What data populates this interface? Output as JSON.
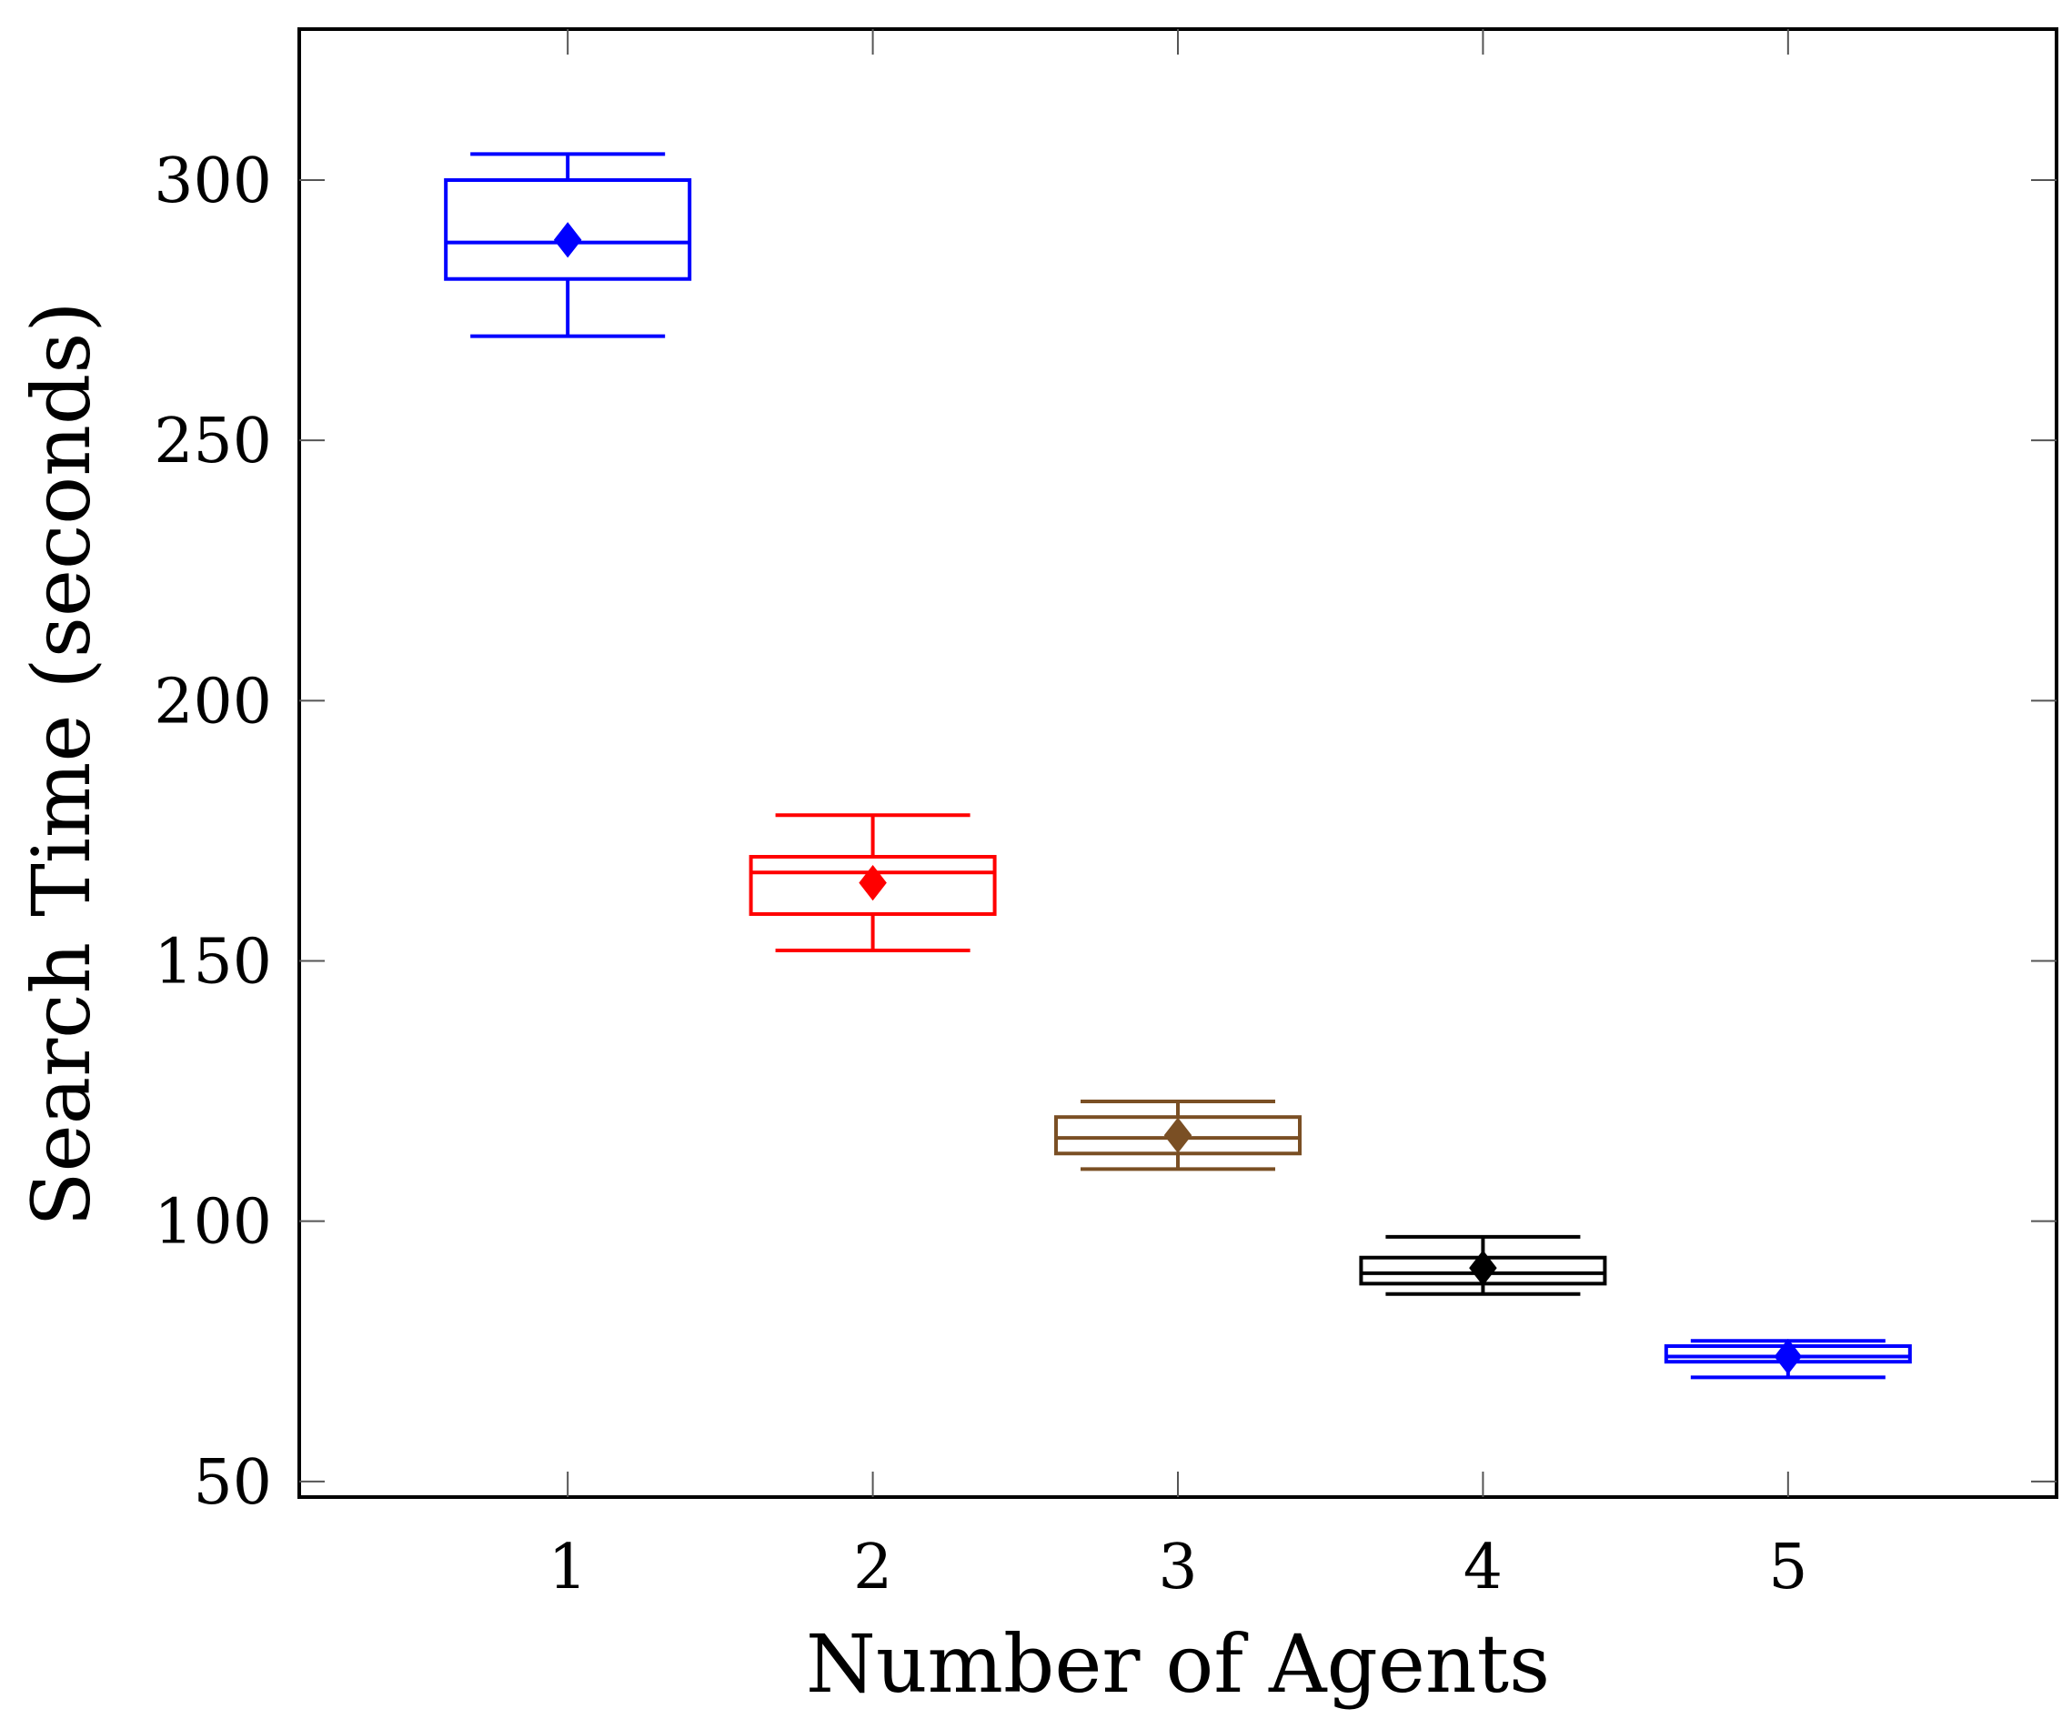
{
  "chart_data": {
    "type": "boxplot",
    "xlabel": "Number of Agents",
    "ylabel": "Search Time (seconds)",
    "xlim": [
      0.12,
      5.88
    ],
    "ylim": [
      47,
      329
    ],
    "x_ticks": [
      1,
      2,
      3,
      4,
      5
    ],
    "y_ticks": [
      50,
      100,
      150,
      200,
      250,
      300
    ],
    "grid": false,
    "legend": "none",
    "boxes": [
      {
        "x": 1,
        "whisker_low": 270,
        "q1": 281,
        "median": 288,
        "q3": 300,
        "whisker_high": 305,
        "mean": 288.5,
        "color": "#0000ff"
      },
      {
        "x": 2,
        "whisker_low": 152,
        "q1": 159,
        "median": 167,
        "q3": 170,
        "whisker_high": 178,
        "mean": 165,
        "color": "#ff0000"
      },
      {
        "x": 3,
        "whisker_low": 110,
        "q1": 113,
        "median": 116,
        "q3": 120,
        "whisker_high": 123,
        "mean": 116.5,
        "color": "#7a4f24"
      },
      {
        "x": 4,
        "whisker_low": 86,
        "q1": 88,
        "median": 90,
        "q3": 93,
        "whisker_high": 97,
        "mean": 91,
        "color": "#000000"
      },
      {
        "x": 5,
        "whisker_low": 70,
        "q1": 73,
        "median": 74,
        "q3": 76,
        "whisker_high": 77,
        "mean": 74,
        "color": "#0000ff"
      }
    ]
  }
}
